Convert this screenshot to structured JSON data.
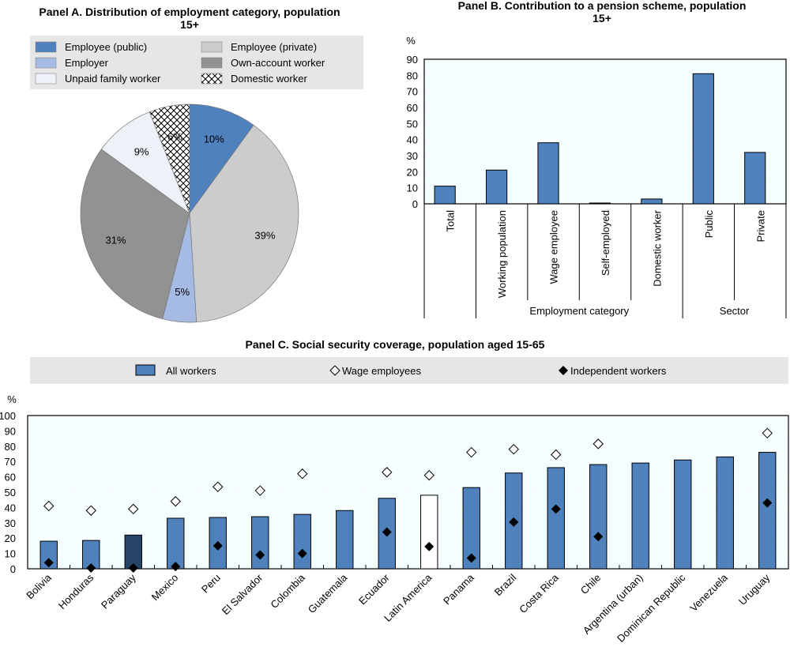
{
  "chart_data": [
    {
      "type": "pie",
      "title_line1": "Panel A. Distribution of employment category, population",
      "title_line2": "15+",
      "legend": "top",
      "slices": [
        {
          "name": "Employee (public)",
          "value": 10,
          "label": "10%",
          "color": "#4f81bd"
        },
        {
          "name": "Employee (private)",
          "value": 39,
          "label": "39%",
          "color": "#cccccc"
        },
        {
          "name": "Employer",
          "value": 5,
          "label": "5%",
          "color": "#a6bbe4"
        },
        {
          "name": "Own-account worker",
          "value": 31,
          "label": "31%",
          "color": "#929292"
        },
        {
          "name": "Unpaid family worker",
          "value": 9,
          "label": "9%",
          "color": "#edf1f8"
        },
        {
          "name": "Domestic worker",
          "value": 6,
          "label": "6%",
          "color": "pattern"
        }
      ]
    },
    {
      "type": "bar",
      "title_line1": "Panel B. Contribution to a pension scheme, population",
      "title_line2": "15+",
      "ylabel": "%",
      "ylim": [
        0,
        90
      ],
      "yticks": [
        0,
        10,
        20,
        30,
        40,
        50,
        60,
        70,
        80,
        90
      ],
      "categories": [
        "Total",
        "Working population",
        "Wage employee",
        "Self-employed",
        "Domestic worker",
        "Public",
        "Private"
      ],
      "values": [
        11,
        21,
        38,
        0.5,
        3,
        81,
        32
      ],
      "groups": [
        {
          "label": "Employment category",
          "from": 1,
          "to": 4
        },
        {
          "label": "Sector",
          "from": 5,
          "to": 6
        }
      ],
      "color": "#4f81bd"
    },
    {
      "type": "bar",
      "title": "Panel C. Social security coverage, population aged 15-65",
      "ylabel": "%",
      "ylim": [
        0,
        100
      ],
      "yticks": [
        0,
        10,
        20,
        30,
        40,
        50,
        60,
        70,
        80,
        90,
        100
      ],
      "legend_entries": [
        "All workers",
        "Wage employees",
        "Independent workers"
      ],
      "categories": [
        "Bolivia",
        "Honduras",
        "Paraguay",
        "Mexico",
        "Peru",
        "El Salvador",
        "Colombia",
        "Guatemala",
        "Ecuador",
        "Latin America",
        "Panama",
        "Brazil",
        "Costa Rica",
        "Chile",
        "Argentina (urban)",
        "Dominican Republic",
        "Venezuela",
        "Uruguay"
      ],
      "series": [
        {
          "name": "All workers",
          "values": [
            18,
            18.5,
            22,
            33,
            33.5,
            34,
            35.5,
            38,
            46,
            48,
            53,
            62.5,
            66,
            68,
            69,
            71,
            73,
            76
          ]
        },
        {
          "name": "Wage employees",
          "values": [
            41,
            38,
            39,
            44,
            53.5,
            51,
            62,
            null,
            63,
            61,
            76,
            78,
            74.5,
            81.5,
            null,
            null,
            null,
            88.5
          ]
        },
        {
          "name": "Independent workers",
          "values": [
            4,
            0.5,
            0.5,
            1.5,
            15,
            9,
            10,
            null,
            24,
            14.5,
            7,
            30.5,
            39,
            21,
            null,
            null,
            null,
            43
          ]
        }
      ],
      "highlight": {
        "Paraguay": "#264466",
        "Latin America": "#ffffff"
      },
      "color": "#4f81bd"
    }
  ]
}
